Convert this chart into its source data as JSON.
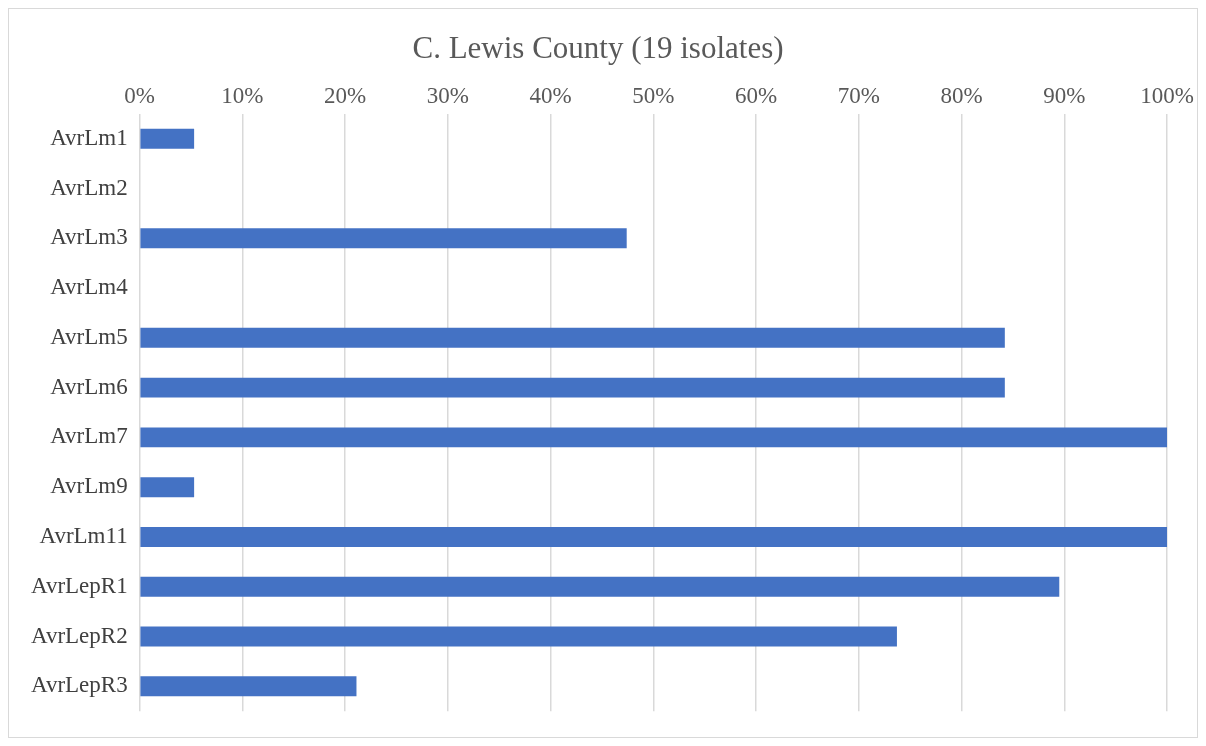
{
  "chart_data": {
    "type": "bar",
    "orientation": "horizontal",
    "title": "C. Lewis County (19 isolates)",
    "categories": [
      "AvrLm1",
      "AvrLm2",
      "AvrLm3",
      "AvrLm4",
      "AvrLm5",
      "AvrLm6",
      "AvrLm7",
      "AvrLm9",
      "AvrLm11",
      "AvrLepR1",
      "AvrLepR2",
      "AvrLepR3"
    ],
    "values": [
      5.3,
      0,
      47.4,
      0,
      84.2,
      84.2,
      100,
      5.3,
      100,
      89.5,
      73.7,
      21.1
    ],
    "color": "#4472c4",
    "xlim": [
      0,
      100
    ],
    "xticks": [
      {
        "value": 0,
        "label": "0%"
      },
      {
        "value": 10,
        "label": "10%"
      },
      {
        "value": 20,
        "label": "20%"
      },
      {
        "value": 30,
        "label": "30%"
      },
      {
        "value": 40,
        "label": "40%"
      },
      {
        "value": 50,
        "label": "50%"
      },
      {
        "value": 60,
        "label": "60%"
      },
      {
        "value": 70,
        "label": "70%"
      },
      {
        "value": 80,
        "label": "80%"
      },
      {
        "value": 90,
        "label": "90%"
      },
      {
        "value": 100,
        "label": "100%"
      }
    ],
    "grid": "x",
    "legend": false
  }
}
